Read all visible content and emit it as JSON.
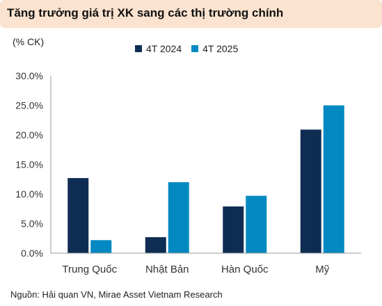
{
  "header": {
    "title": "Tăng trưởng giá trị XK sang các thị trường chính"
  },
  "chart_data": {
    "type": "bar",
    "title": "Tăng trưởng giá trị XK sang các thị trường chính",
    "ylabel": "(% CK)",
    "xlabel": "",
    "categories": [
      "Trung Quốc",
      "Nhật Bản",
      "Hàn Quốc",
      "Mỹ"
    ],
    "series": [
      {
        "name": "4T 2024",
        "color": "#0f2d52",
        "values": [
          12.7,
          2.7,
          7.9,
          20.9
        ]
      },
      {
        "name": "4T 2025",
        "color": "#0289c1",
        "values": [
          2.2,
          12.0,
          9.7,
          25.0
        ]
      }
    ],
    "ylim": [
      0,
      30
    ],
    "yticks": [
      0,
      5,
      10,
      15,
      20,
      25,
      30
    ],
    "ytick_labels": [
      "0.0%",
      "5.0%",
      "10.0%",
      "15.0%",
      "20.0%",
      "25.0%",
      "30.0%"
    ],
    "grid": false,
    "legend_position": "top-center"
  },
  "footer": {
    "source": "Nguồn: Hải quan VN, Mirae Asset Vietnam Research"
  }
}
